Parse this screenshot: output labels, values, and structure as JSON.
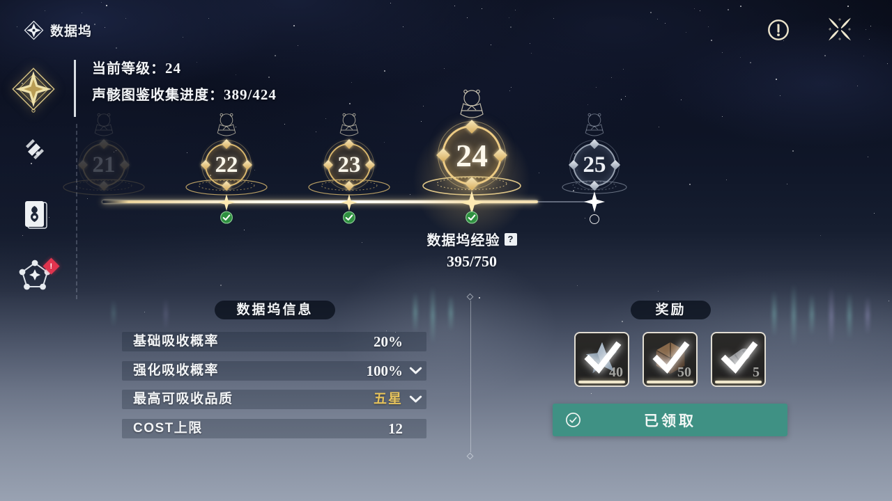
{
  "window": {
    "title": "数据坞"
  },
  "topbar": {
    "alert_icon": "circle-exclamation",
    "close_icon": "four-point-star"
  },
  "header": {
    "current_level_label": "当前等级：",
    "current_level_value": "24",
    "collection_label": "声骸图鉴收集进度：",
    "collection_value": "389/424"
  },
  "sidebar": {
    "items": [
      {
        "id": "data-bank-emblem",
        "selected": true
      },
      {
        "id": "synthesis",
        "selected": false
      },
      {
        "id": "card-album",
        "selected": false
      },
      {
        "id": "network",
        "selected": false,
        "badge": "!"
      }
    ]
  },
  "level_track": {
    "nodes": [
      {
        "level": "21",
        "state": "dim"
      },
      {
        "level": "22",
        "state": "done"
      },
      {
        "level": "23",
        "state": "done"
      },
      {
        "level": "24",
        "state": "current"
      },
      {
        "level": "25",
        "state": "locked"
      }
    ],
    "exp_label": "数据坞经验",
    "exp_help_icon": "?",
    "exp_value": "395/750"
  },
  "info_panel": {
    "title": "数据坞信息",
    "rows": [
      {
        "label": "基础吸收概率",
        "value": "20%",
        "dropdown": false,
        "highlight": false
      },
      {
        "label": "强化吸收概率",
        "value": "100%",
        "dropdown": true,
        "highlight": false
      },
      {
        "label": "最高可吸收品质",
        "value": "五星",
        "dropdown": true,
        "highlight": true
      },
      {
        "label": "COST上限",
        "value": "12",
        "dropdown": false,
        "highlight": false
      }
    ]
  },
  "rewards_panel": {
    "title": "奖励",
    "items": [
      {
        "icon": "star-crystal-icon",
        "quantity": "40",
        "claimed": true
      },
      {
        "icon": "polyhedron-die-icon",
        "quantity": "50",
        "claimed": true
      },
      {
        "icon": "tube-item-icon",
        "quantity": "5",
        "claimed": true
      }
    ],
    "claim_button_label": "已领取"
  },
  "colors": {
    "gold": "#d9b76d",
    "quality_gold": "#e6c35c",
    "button_teal": "#3f9184",
    "check_green": "#2f9040",
    "badge_red": "#e0344e"
  }
}
